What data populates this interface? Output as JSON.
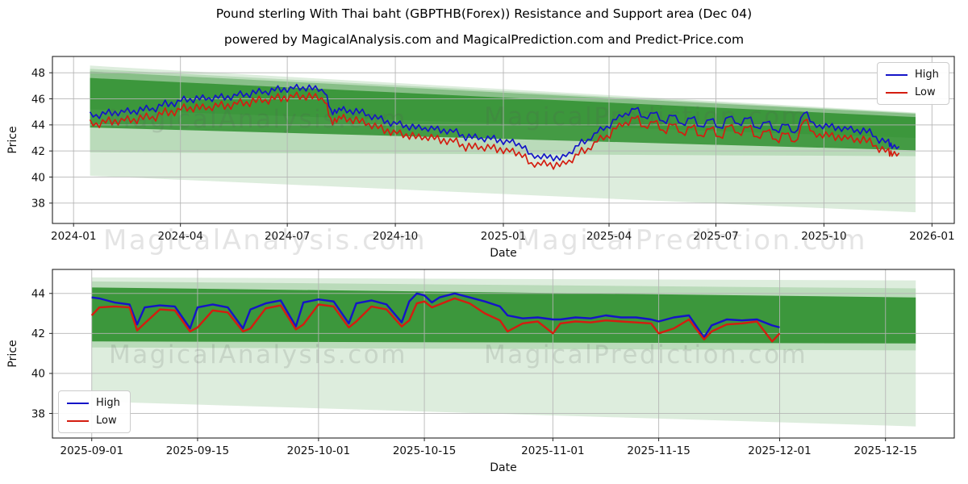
{
  "header": {
    "title": "Pound sterling With Thai baht (GBPTHB(Forex)) Resistance and Support area (Dec 04)",
    "subtitle": "powered by MagicalAnalysis.com and MagicalPrediction.com and Predict-Price.com"
  },
  "watermarks": {
    "analysis": "MagicalAnalysis.com",
    "prediction": "MagicalPrediction.com"
  },
  "chart_data": [
    {
      "type": "line",
      "title": "",
      "xlabel": "Date",
      "ylabel": "Price",
      "grid": true,
      "x_epoch": "2024-01-01",
      "xlim_days": [
        -18,
        750
      ],
      "ylim": [
        36.44,
        49.25
      ],
      "xticks": [
        {
          "day": 0,
          "label": "2024-01"
        },
        {
          "day": 91,
          "label": "2024-04"
        },
        {
          "day": 182,
          "label": "2024-07"
        },
        {
          "day": 274,
          "label": "2024-10"
        },
        {
          "day": 366,
          "label": "2025-01"
        },
        {
          "day": 456,
          "label": "2025-04"
        },
        {
          "day": 547,
          "label": "2025-07"
        },
        {
          "day": 639,
          "label": "2025-10"
        },
        {
          "day": 731,
          "label": "2026-01"
        }
      ],
      "yticks": [
        38,
        40,
        42,
        44,
        46,
        48
      ],
      "legend": {
        "position": "upper right",
        "entries": [
          {
            "label": "High",
            "color": "#1414c8"
          },
          {
            "label": "Low",
            "color": "#d41d10"
          }
        ]
      },
      "bands": [
        {
          "name": "outer-light-band",
          "color": "#cfe6cf",
          "opacity": 0.7,
          "poly": [
            [
              14,
              48.55
            ],
            [
              717,
              44.95
            ],
            [
              717,
              37.3
            ],
            [
              14,
              40.1
            ]
          ]
        },
        {
          "name": "mid-light-band",
          "color": "#9ccc9c",
          "opacity": 0.55,
          "poly": [
            [
              14,
              48.3
            ],
            [
              717,
              44.9
            ],
            [
              717,
              41.6
            ],
            [
              14,
              41.9
            ]
          ]
        },
        {
          "name": "upper-fade-band",
          "color": "#55a455",
          "opacity": 0.5,
          "poly": [
            [
              14,
              48.1
            ],
            [
              717,
              44.85
            ],
            [
              717,
              43.0
            ],
            [
              14,
              45.2
            ]
          ]
        },
        {
          "name": "dark-core-band",
          "color": "#2f8f2f",
          "opacity": 0.85,
          "poly": [
            [
              14,
              47.6
            ],
            [
              717,
              44.6
            ],
            [
              717,
              42.05
            ],
            [
              14,
              43.8
            ]
          ]
        }
      ],
      "series_names": [
        "High",
        "Low"
      ],
      "points_day_high_low": [
        [
          14,
          45.0,
          44.4
        ],
        [
          22,
          44.5,
          43.8
        ],
        [
          30,
          45.2,
          44.6
        ],
        [
          38,
          44.7,
          44.0
        ],
        [
          46,
          45.3,
          44.7
        ],
        [
          54,
          44.8,
          44.1
        ],
        [
          62,
          45.5,
          44.9
        ],
        [
          70,
          45.0,
          44.3
        ],
        [
          78,
          45.9,
          45.3
        ],
        [
          86,
          45.4,
          44.7
        ],
        [
          94,
          46.2,
          45.6
        ],
        [
          102,
          45.7,
          45.0
        ],
        [
          110,
          46.3,
          45.6
        ],
        [
          118,
          45.8,
          45.1
        ],
        [
          126,
          46.4,
          45.8
        ],
        [
          134,
          45.9,
          45.2
        ],
        [
          142,
          46.6,
          46.0
        ],
        [
          150,
          46.1,
          45.4
        ],
        [
          158,
          46.8,
          46.2
        ],
        [
          166,
          46.3,
          45.6
        ],
        [
          174,
          47.0,
          46.4
        ],
        [
          182,
          46.5,
          45.8
        ],
        [
          190,
          47.1,
          46.5
        ],
        [
          198,
          46.6,
          45.9
        ],
        [
          206,
          47.0,
          46.4
        ],
        [
          214,
          46.4,
          45.7
        ],
        [
          219,
          45.2,
          44.5
        ],
        [
          224,
          44.9,
          44.2
        ],
        [
          230,
          45.4,
          44.8
        ],
        [
          238,
          44.8,
          44.1
        ],
        [
          246,
          45.2,
          44.5
        ],
        [
          254,
          44.4,
          43.7
        ],
        [
          262,
          44.7,
          44.0
        ],
        [
          270,
          43.9,
          43.2
        ],
        [
          278,
          44.3,
          43.6
        ],
        [
          286,
          43.6,
          42.9
        ],
        [
          294,
          44.0,
          43.3
        ],
        [
          302,
          43.5,
          42.8
        ],
        [
          310,
          43.9,
          43.2
        ],
        [
          318,
          43.3,
          42.5
        ],
        [
          326,
          43.7,
          43.0
        ],
        [
          334,
          42.8,
          42.0
        ],
        [
          342,
          43.3,
          42.6
        ],
        [
          350,
          42.7,
          42.0
        ],
        [
          358,
          43.2,
          42.5
        ],
        [
          366,
          42.5,
          41.8
        ],
        [
          374,
          42.9,
          42.2
        ],
        [
          382,
          42.2,
          41.5
        ],
        [
          390,
          41.8,
          41.1
        ],
        [
          398,
          41.4,
          40.9
        ],
        [
          406,
          41.7,
          41.1
        ],
        [
          414,
          41.3,
          40.8
        ],
        [
          422,
          41.9,
          41.3
        ],
        [
          430,
          42.4,
          41.7
        ],
        [
          438,
          42.9,
          42.2
        ],
        [
          446,
          43.4,
          42.7
        ],
        [
          454,
          43.9,
          43.2
        ],
        [
          462,
          44.4,
          43.7
        ],
        [
          470,
          44.9,
          44.2
        ],
        [
          478,
          45.2,
          44.5
        ],
        [
          486,
          44.6,
          43.9
        ],
        [
          494,
          44.9,
          44.2
        ],
        [
          502,
          44.3,
          43.6
        ],
        [
          510,
          44.7,
          44.0
        ],
        [
          518,
          44.1,
          43.4
        ],
        [
          526,
          44.5,
          43.8
        ],
        [
          534,
          43.9,
          43.2
        ],
        [
          542,
          44.4,
          43.7
        ],
        [
          550,
          43.8,
          43.1
        ],
        [
          558,
          44.6,
          43.9
        ],
        [
          566,
          44.1,
          43.4
        ],
        [
          574,
          44.5,
          43.8
        ],
        [
          582,
          43.8,
          43.1
        ],
        [
          590,
          44.2,
          43.5
        ],
        [
          598,
          43.6,
          42.9
        ],
        [
          606,
          44.0,
          43.3
        ],
        [
          614,
          43.4,
          42.7
        ],
        [
          622,
          44.9,
          44.3
        ],
        [
          630,
          44.2,
          43.5
        ],
        [
          638,
          43.7,
          43.0
        ],
        [
          646,
          44.1,
          43.4
        ],
        [
          654,
          43.5,
          42.8
        ],
        [
          662,
          43.9,
          43.2
        ],
        [
          670,
          43.3,
          42.6
        ],
        [
          678,
          43.7,
          43.0
        ],
        [
          686,
          42.6,
          41.9
        ],
        [
          694,
          42.9,
          42.2
        ],
        [
          697,
          42.2,
          41.6
        ],
        [
          703,
          42.35,
          41.85
        ]
      ]
    },
    {
      "type": "line",
      "title": "",
      "xlabel": "Date",
      "ylabel": "Price",
      "grid": true,
      "x_epoch": "2025-09-01",
      "xlim_days": [
        -5.2,
        114.1
      ],
      "ylim": [
        36.77,
        45.2
      ],
      "xticks": [
        {
          "day": 0,
          "label": "2025-09-01"
        },
        {
          "day": 14,
          "label": "2025-09-15"
        },
        {
          "day": 30,
          "label": "2025-10-01"
        },
        {
          "day": 44,
          "label": "2025-10-15"
        },
        {
          "day": 61,
          "label": "2025-11-01"
        },
        {
          "day": 75,
          "label": "2025-11-15"
        },
        {
          "day": 91,
          "label": "2025-12-01"
        },
        {
          "day": 105,
          "label": "2025-12-15"
        }
      ],
      "yticks": [
        38,
        40,
        42,
        44
      ],
      "legend": {
        "position": "lower left",
        "entries": [
          {
            "label": "High",
            "color": "#1414c8"
          },
          {
            "label": "Low",
            "color": "#d41d10"
          }
        ]
      },
      "bands": [
        {
          "name": "outer-light-band",
          "color": "#cfe6cf",
          "opacity": 0.7,
          "poly": [
            [
              0,
              44.8
            ],
            [
              109,
              44.65
            ],
            [
              109,
              37.35
            ],
            [
              0,
              38.6
            ]
          ]
        },
        {
          "name": "mid-light-band",
          "color": "#9ccc9c",
          "opacity": 0.55,
          "poly": [
            [
              0,
              44.6
            ],
            [
              109,
              44.25
            ],
            [
              109,
              41.15
            ],
            [
              0,
              41.3
            ]
          ]
        },
        {
          "name": "dark-core-band",
          "color": "#2f8f2f",
          "opacity": 0.9,
          "poly": [
            [
              0,
              44.3
            ],
            [
              109,
              43.8
            ],
            [
              109,
              41.5
            ],
            [
              0,
              41.6
            ]
          ]
        }
      ],
      "series_names": [
        "High",
        "Low"
      ],
      "points_day_high_low": [
        [
          0,
          43.8,
          42.9
        ],
        [
          1,
          43.75,
          43.3
        ],
        [
          3,
          43.55,
          43.35
        ],
        [
          5,
          43.45,
          43.3
        ],
        [
          6,
          42.45,
          42.15
        ],
        [
          7,
          43.3,
          42.5
        ],
        [
          9,
          43.4,
          43.2
        ],
        [
          11,
          43.35,
          43.15
        ],
        [
          13,
          42.25,
          42.1
        ],
        [
          14,
          43.3,
          42.3
        ],
        [
          16,
          43.45,
          43.15
        ],
        [
          18,
          43.3,
          43.05
        ],
        [
          20,
          42.25,
          42.1
        ],
        [
          21,
          43.2,
          42.25
        ],
        [
          23,
          43.5,
          43.25
        ],
        [
          25,
          43.65,
          43.4
        ],
        [
          27,
          42.35,
          42.2
        ],
        [
          28,
          43.55,
          42.45
        ],
        [
          30,
          43.7,
          43.45
        ],
        [
          32,
          43.6,
          43.35
        ],
        [
          34,
          42.5,
          42.3
        ],
        [
          35,
          43.5,
          42.6
        ],
        [
          37,
          43.65,
          43.35
        ],
        [
          39,
          43.45,
          43.2
        ],
        [
          41,
          42.55,
          42.35
        ],
        [
          42,
          43.6,
          42.65
        ],
        [
          43,
          44.0,
          43.5
        ],
        [
          44,
          43.9,
          43.6
        ],
        [
          45,
          43.55,
          43.3
        ],
        [
          46,
          43.8,
          43.45
        ],
        [
          48,
          44.0,
          43.75
        ],
        [
          50,
          43.8,
          43.5
        ],
        [
          52,
          43.6,
          43.0
        ],
        [
          54,
          43.35,
          42.65
        ],
        [
          55,
          42.9,
          42.1
        ],
        [
          57,
          42.75,
          42.5
        ],
        [
          59,
          42.8,
          42.6
        ],
        [
          61,
          42.7,
          42.0
        ],
        [
          62,
          42.7,
          42.5
        ],
        [
          64,
          42.8,
          42.6
        ],
        [
          66,
          42.75,
          42.55
        ],
        [
          68,
          42.9,
          42.65
        ],
        [
          70,
          42.8,
          42.6
        ],
        [
          72,
          42.8,
          42.55
        ],
        [
          74,
          42.7,
          42.5
        ],
        [
          75,
          42.6,
          42.0
        ],
        [
          77,
          42.8,
          42.25
        ],
        [
          79,
          42.9,
          42.7
        ],
        [
          81,
          41.8,
          41.7
        ],
        [
          82,
          42.4,
          42.1
        ],
        [
          84,
          42.7,
          42.45
        ],
        [
          86,
          42.65,
          42.5
        ],
        [
          88,
          42.7,
          42.6
        ],
        [
          90,
          42.4,
          41.6
        ],
        [
          91,
          42.3,
          42.0
        ]
      ]
    }
  ]
}
